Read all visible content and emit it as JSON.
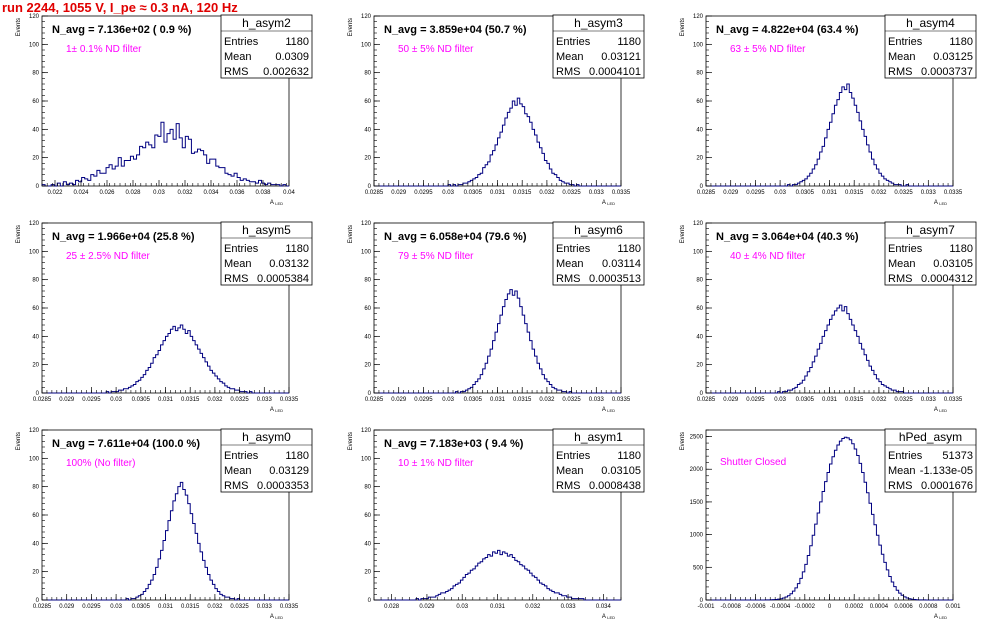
{
  "page_title": "run 2244,  1055 V, I_pe ≈ 0.3 nA, 120 Hz",
  "colors": {
    "title": "#e00000",
    "histogram": "#000080",
    "annotation": "#ff00ff"
  },
  "chart_data": [
    {
      "type": "bar",
      "histogram": "h_asym2",
      "stats": {
        "entries": "1180",
        "mean": "0.0309",
        "rms": "0.002632"
      },
      "navg": "N_avg = 7.136e+02 ( 0.9 %)",
      "note": "1± 0.1% ND filter",
      "xlabel": "A",
      "xlabel_sub": "LED",
      "ylabel": "Events",
      "xlim": [
        0.021,
        0.04
      ],
      "ylim": [
        0,
        120
      ],
      "mu": 0.0309,
      "sigma": 0.002632,
      "x_ticks": [
        0.022,
        0.024,
        0.026,
        0.028,
        0.03,
        0.032,
        0.034,
        0.036,
        0.038,
        0.04
      ],
      "x_tick_labels": [
        "0.022",
        "0.024",
        "0.026",
        "0.028",
        "0.03",
        "0.032",
        "0.034",
        "0.036",
        "0.038",
        "0.04"
      ],
      "y_ticks": [
        0,
        20,
        40,
        60,
        80,
        100,
        120
      ],
      "counts": [
        1,
        0,
        0,
        1,
        0,
        2,
        0,
        3,
        1,
        2,
        1,
        4,
        3,
        6,
        5,
        4,
        8,
        7,
        11,
        9,
        9,
        13,
        15,
        12,
        14,
        20,
        14,
        18,
        18,
        21,
        19,
        22,
        28,
        27,
        31,
        29,
        27,
        36,
        35,
        45,
        31,
        37,
        40,
        33,
        44,
        34,
        27,
        35,
        33,
        23,
        24,
        26,
        25,
        22,
        16,
        19,
        19,
        14,
        13,
        13,
        9,
        8,
        7,
        9,
        6,
        4,
        5,
        4,
        3,
        3,
        2,
        4,
        2,
        1,
        2,
        1,
        1,
        1,
        0,
        1,
        0
      ]
    },
    {
      "type": "bar",
      "histogram": "h_asym3",
      "stats": {
        "entries": "1180",
        "mean": "0.03121",
        "rms": "0.0004101"
      },
      "navg": "N_avg = 3.859e+04 (50.7 %)",
      "note": "50 ± 5% ND filter",
      "xlabel": "A",
      "xlabel_sub": "LED",
      "ylabel": "Events",
      "xlim": [
        0.0285,
        0.0335
      ],
      "ylim": [
        0,
        120
      ],
      "mu": 0.03121,
      "sigma": 0.0004101,
      "x_ticks": [
        0.0285,
        0.029,
        0.0295,
        0.03,
        0.0305,
        0.031,
        0.0315,
        0.032,
        0.0325,
        0.033,
        0.0335
      ],
      "x_tick_labels": [
        "0.0285",
        "0.029",
        "0.0295",
        "0.03",
        "0.0305",
        "0.031",
        "0.0315",
        "0.032",
        "0.0325",
        "0.033",
        "0.0335"
      ],
      "y_ticks": [
        0,
        20,
        40,
        60,
        80,
        100,
        120
      ],
      "counts": [
        0,
        0,
        0,
        0,
        0,
        0,
        0,
        0,
        0,
        0,
        0,
        0,
        0,
        0,
        0,
        0,
        0,
        0,
        0,
        0,
        0,
        0,
        0,
        0,
        0,
        0,
        0,
        0,
        0,
        0,
        1,
        0,
        1,
        0,
        1,
        1,
        2,
        2,
        3,
        4,
        5,
        6,
        8,
        9,
        13,
        15,
        17,
        22,
        25,
        29,
        34,
        38,
        43,
        48,
        52,
        55,
        60,
        57,
        62,
        58,
        56,
        51,
        49,
        45,
        40,
        36,
        31,
        27,
        23,
        18,
        16,
        12,
        9,
        8,
        6,
        4,
        3,
        2,
        2,
        1,
        1,
        0,
        1,
        0,
        0,
        0,
        0,
        0,
        0,
        0,
        0,
        0,
        0,
        0,
        0,
        0,
        0,
        0,
        0,
        0
      ]
    },
    {
      "type": "bar",
      "histogram": "h_asym4",
      "stats": {
        "entries": "1180",
        "mean": "0.03125",
        "rms": "0.0003737"
      },
      "navg": "N_avg = 4.822e+04 (63.4 %)",
      "note": "63 ± 5% ND filter",
      "xlabel": "A",
      "xlabel_sub": "LED",
      "ylabel": "Events",
      "xlim": [
        0.0285,
        0.0335
      ],
      "ylim": [
        0,
        120
      ],
      "mu": 0.03125,
      "sigma": 0.0003737,
      "x_ticks": [
        0.0285,
        0.029,
        0.0295,
        0.03,
        0.0305,
        0.031,
        0.0315,
        0.032,
        0.0325,
        0.033,
        0.0335
      ],
      "x_tick_labels": [
        "0.0285",
        "0.029",
        "0.0295",
        "0.03",
        "0.0305",
        "0.031",
        "0.0315",
        "0.032",
        "0.0325",
        "0.033",
        "0.0335"
      ],
      "y_ticks": [
        0,
        20,
        40,
        60,
        80,
        100,
        120
      ],
      "counts": [
        0,
        0,
        0,
        0,
        0,
        0,
        0,
        0,
        0,
        0,
        0,
        0,
        0,
        0,
        0,
        0,
        0,
        0,
        0,
        0,
        0,
        0,
        0,
        0,
        0,
        0,
        0,
        0,
        0,
        0,
        0,
        0,
        0,
        1,
        0,
        1,
        1,
        2,
        3,
        4,
        5,
        7,
        9,
        12,
        15,
        19,
        24,
        28,
        34,
        40,
        45,
        51,
        57,
        61,
        66,
        70,
        68,
        72,
        66,
        62,
        57,
        52,
        46,
        40,
        35,
        29,
        24,
        19,
        15,
        12,
        9,
        7,
        5,
        4,
        3,
        2,
        1,
        1,
        1,
        0,
        0,
        1,
        0,
        0,
        0,
        0,
        0,
        0,
        0,
        0,
        0,
        0,
        0,
        0,
        0,
        0,
        0,
        0,
        0,
        0
      ]
    },
    {
      "type": "bar",
      "histogram": "h_asym5",
      "stats": {
        "entries": "1180",
        "mean": "0.03132",
        "rms": "0.0005384"
      },
      "navg": "N_avg = 1.966e+04 (25.8 %)",
      "note": "25 ± 2.5% ND filter",
      "xlabel": "A",
      "xlabel_sub": "LED",
      "ylabel": "Events",
      "xlim": [
        0.0285,
        0.0335
      ],
      "ylim": [
        0,
        120
      ],
      "mu": 0.03132,
      "sigma": 0.0005384,
      "x_ticks": [
        0.0285,
        0.029,
        0.0295,
        0.03,
        0.0305,
        0.031,
        0.0315,
        0.032,
        0.0325,
        0.033,
        0.0335
      ],
      "x_tick_labels": [
        "0.0285",
        "0.029",
        "0.0295",
        "0.03",
        "0.0305",
        "0.031",
        "0.0315",
        "0.032",
        "0.0325",
        "0.033",
        "0.0335"
      ],
      "y_ticks": [
        0,
        20,
        40,
        60,
        80,
        100,
        120
      ],
      "counts": [
        0,
        0,
        0,
        0,
        0,
        0,
        0,
        0,
        0,
        0,
        0,
        0,
        0,
        0,
        0,
        0,
        0,
        0,
        0,
        0,
        0,
        0,
        0,
        0,
        0,
        0,
        1,
        0,
        1,
        1,
        1,
        2,
        2,
        3,
        3,
        4,
        5,
        6,
        8,
        9,
        11,
        13,
        16,
        18,
        21,
        25,
        27,
        30,
        34,
        37,
        40,
        42,
        45,
        47,
        44,
        46,
        48,
        45,
        42,
        44,
        40,
        37,
        34,
        31,
        28,
        25,
        22,
        19,
        16,
        14,
        12,
        10,
        8,
        7,
        5,
        4,
        3,
        3,
        2,
        2,
        1,
        1,
        1,
        0,
        1,
        0,
        0,
        0,
        0,
        0,
        0,
        0,
        0,
        0,
        0,
        0,
        0,
        0,
        0,
        0
      ]
    },
    {
      "type": "bar",
      "histogram": "h_asym6",
      "stats": {
        "entries": "1180",
        "mean": "0.03114",
        "rms": "0.0003513"
      },
      "navg": "N_avg = 6.058e+04 (79.6 %)",
      "note": "79 ± 5% ND filter",
      "xlabel": "A",
      "xlabel_sub": "LED",
      "ylabel": "Events",
      "xlim": [
        0.0285,
        0.0335
      ],
      "ylim": [
        0,
        120
      ],
      "mu": 0.03114,
      "sigma": 0.0003513,
      "x_ticks": [
        0.0285,
        0.029,
        0.0295,
        0.03,
        0.0305,
        0.031,
        0.0315,
        0.032,
        0.0325,
        0.033,
        0.0335
      ],
      "x_tick_labels": [
        "0.0285",
        "0.029",
        "0.0295",
        "0.03",
        "0.0305",
        "0.031",
        "0.0315",
        "0.032",
        "0.0325",
        "0.033",
        "0.0335"
      ],
      "y_ticks": [
        0,
        20,
        40,
        60,
        80,
        100,
        120
      ],
      "counts": [
        0,
        0,
        0,
        0,
        0,
        0,
        0,
        0,
        0,
        0,
        0,
        0,
        0,
        0,
        0,
        0,
        0,
        0,
        0,
        0,
        0,
        0,
        0,
        0,
        0,
        0,
        0,
        0,
        0,
        0,
        0,
        0,
        0,
        1,
        0,
        1,
        1,
        2,
        3,
        4,
        6,
        8,
        10,
        13,
        17,
        21,
        26,
        31,
        37,
        43,
        49,
        55,
        61,
        66,
        70,
        73,
        69,
        72,
        67,
        61,
        55,
        49,
        43,
        37,
        31,
        26,
        21,
        17,
        13,
        10,
        8,
        6,
        4,
        3,
        2,
        2,
        1,
        1,
        0,
        1,
        0,
        0,
        0,
        0,
        0,
        0,
        0,
        0,
        0,
        0,
        0,
        0,
        0,
        0,
        0,
        0,
        0,
        0,
        0,
        0
      ]
    },
    {
      "type": "bar",
      "histogram": "h_asym7",
      "stats": {
        "entries": "1180",
        "mean": "0.03105",
        "rms": "0.0004312"
      },
      "navg": "N_avg = 3.064e+04 (40.3 %)",
      "note": "40 ± 4% ND filter",
      "xlabel": "A",
      "xlabel_sub": "LED",
      "ylabel": "Events",
      "xlim": [
        0.0285,
        0.0335
      ],
      "ylim": [
        0,
        120
      ],
      "mu": 0.03105,
      "sigma": 0.0004312,
      "x_ticks": [
        0.0285,
        0.029,
        0.0295,
        0.03,
        0.0305,
        0.031,
        0.0315,
        0.032,
        0.0325,
        0.033,
        0.0335
      ],
      "x_tick_labels": [
        "0.0285",
        "0.029",
        "0.0295",
        "0.03",
        "0.0305",
        "0.031",
        "0.0315",
        "0.032",
        "0.0325",
        "0.033",
        "0.0335"
      ],
      "y_ticks": [
        0,
        20,
        40,
        60,
        80,
        100,
        120
      ],
      "counts": [
        0,
        0,
        0,
        0,
        0,
        0,
        0,
        0,
        0,
        0,
        0,
        0,
        0,
        0,
        0,
        0,
        0,
        0,
        0,
        0,
        0,
        0,
        0,
        0,
        0,
        0,
        0,
        0,
        0,
        1,
        0,
        1,
        1,
        2,
        2,
        3,
        4,
        6,
        7,
        9,
        12,
        15,
        18,
        22,
        26,
        31,
        35,
        40,
        44,
        48,
        52,
        55,
        58,
        60,
        62,
        58,
        61,
        56,
        52,
        48,
        44,
        40,
        35,
        31,
        27,
        23,
        19,
        16,
        13,
        10,
        8,
        6,
        5,
        4,
        3,
        2,
        2,
        1,
        1,
        1,
        0,
        0,
        0,
        0,
        0,
        0,
        0,
        0,
        0,
        0,
        0,
        0,
        0,
        0,
        0,
        0,
        0,
        0,
        0,
        0
      ]
    },
    {
      "type": "bar",
      "histogram": "h_asym0",
      "stats": {
        "entries": "1180",
        "mean": "0.03129",
        "rms": "0.0003353"
      },
      "navg": "N_avg = 7.611e+04 (100.0 %)",
      "note": "100% (No filter)",
      "xlabel": "A",
      "xlabel_sub": "LED",
      "ylabel": "Events",
      "xlim": [
        0.0285,
        0.0335
      ],
      "ylim": [
        0,
        120
      ],
      "mu": 0.03129,
      "sigma": 0.0003353,
      "x_ticks": [
        0.0285,
        0.029,
        0.0295,
        0.03,
        0.0305,
        0.031,
        0.0315,
        0.032,
        0.0325,
        0.033,
        0.0335
      ],
      "x_tick_labels": [
        "0.0285",
        "0.029",
        "0.0295",
        "0.03",
        "0.0305",
        "0.031",
        "0.0315",
        "0.032",
        "0.0325",
        "0.033",
        "0.0335"
      ],
      "y_ticks": [
        0,
        20,
        40,
        60,
        80,
        100,
        120
      ],
      "counts": [
        0,
        0,
        0,
        0,
        0,
        0,
        0,
        0,
        0,
        0,
        0,
        0,
        0,
        0,
        0,
        0,
        0,
        0,
        0,
        0,
        0,
        0,
        0,
        0,
        0,
        0,
        0,
        0,
        0,
        0,
        0,
        0,
        0,
        0,
        1,
        0,
        1,
        1,
        2,
        3,
        4,
        6,
        8,
        11,
        14,
        18,
        23,
        29,
        35,
        42,
        49,
        56,
        63,
        70,
        75,
        80,
        83,
        78,
        74,
        68,
        61,
        54,
        47,
        40,
        34,
        28,
        23,
        18,
        14,
        11,
        8,
        6,
        4,
        3,
        2,
        2,
        1,
        1,
        0,
        1,
        0,
        0,
        0,
        0,
        0,
        0,
        0,
        0,
        0,
        0,
        0,
        0,
        0,
        0,
        0,
        0,
        0,
        0,
        0,
        0
      ]
    },
    {
      "type": "bar",
      "histogram": "h_asym1",
      "stats": {
        "entries": "1180",
        "mean": "0.03105",
        "rms": "0.0008438"
      },
      "navg": "N_avg = 7.183e+03 ( 9.4 %)",
      "note": "10 ± 1% ND filter",
      "xlabel": "A",
      "xlabel_sub": "LED",
      "ylabel": "Events",
      "xlim": [
        0.0275,
        0.0345
      ],
      "ylim": [
        0,
        120
      ],
      "mu": 0.03105,
      "sigma": 0.0008438,
      "x_ticks": [
        0.028,
        0.029,
        0.03,
        0.031,
        0.032,
        0.033,
        0.034
      ],
      "x_tick_labels": [
        "0.028",
        "0.029",
        "0.03",
        "0.031",
        "0.032",
        "0.033",
        "0.034"
      ],
      "y_ticks": [
        0,
        20,
        40,
        60,
        80,
        100,
        120
      ],
      "counts": [
        0,
        0,
        0,
        0,
        0,
        0,
        0,
        0,
        0,
        0,
        0,
        0,
        0,
        0,
        0,
        0,
        0,
        1,
        0,
        1,
        1,
        1,
        2,
        2,
        2,
        3,
        4,
        5,
        5,
        6,
        7,
        8,
        10,
        11,
        12,
        14,
        16,
        18,
        19,
        21,
        22,
        24,
        26,
        27,
        29,
        30,
        32,
        31,
        34,
        33,
        35,
        32,
        34,
        33,
        31,
        32,
        30,
        28,
        27,
        25,
        24,
        22,
        21,
        19,
        17,
        16,
        14,
        12,
        11,
        10,
        8,
        7,
        6,
        5,
        5,
        4,
        3,
        3,
        2,
        2,
        1,
        1,
        1,
        1,
        1,
        0,
        0,
        0,
        0,
        0,
        0,
        0,
        0,
        0,
        0,
        0,
        0,
        0,
        0,
        0
      ]
    },
    {
      "type": "bar",
      "histogram": "hPed_asym",
      "stats": {
        "entries": "51373",
        "mean": "-1.133e-05",
        "rms": "0.0001676"
      },
      "navg": "",
      "note": "Shutter Closed",
      "xlabel": "A",
      "xlabel_sub": "LED",
      "ylabel": "Events",
      "xlim": [
        -0.001,
        0.001
      ],
      "ylim": [
        0,
        2600
      ],
      "mu": -1.133e-05,
      "sigma": 0.0001676,
      "x_ticks": [
        -0.001,
        -0.0008,
        -0.0006,
        -0.0004,
        -0.0002,
        0,
        0.0002,
        0.0004,
        0.0006,
        0.0008,
        0.001
      ],
      "x_tick_labels": [
        "-0.001",
        "-0.0008",
        "-0.0006",
        "-0.0004",
        "-0.0002",
        "0",
        "0.0002",
        "0.0004",
        "0.0006",
        "0.0008",
        "0.001"
      ],
      "y_ticks": [
        0,
        500,
        1000,
        1500,
        2000,
        2500
      ],
      "counts": [
        0,
        0,
        0,
        0,
        0,
        0,
        0,
        0,
        0,
        0,
        0,
        0,
        0,
        0,
        0,
        0,
        0,
        0,
        0,
        0,
        0,
        0,
        0,
        0,
        1,
        2,
        3,
        5,
        8,
        13,
        20,
        30,
        45,
        65,
        95,
        135,
        185,
        250,
        330,
        430,
        545,
        680,
        830,
        990,
        1160,
        1330,
        1500,
        1660,
        1810,
        1950,
        2080,
        2190,
        2290,
        2370,
        2430,
        2470,
        2490,
        2480,
        2450,
        2390,
        2310,
        2210,
        2090,
        1950,
        1800,
        1640,
        1480,
        1310,
        1150,
        990,
        840,
        700,
        575,
        460,
        360,
        275,
        205,
        150,
        105,
        72,
        48,
        31,
        20,
        12,
        7,
        4,
        2,
        1,
        1,
        0,
        0,
        0,
        0,
        0,
        0,
        0,
        0,
        0,
        0,
        0
      ]
    }
  ]
}
